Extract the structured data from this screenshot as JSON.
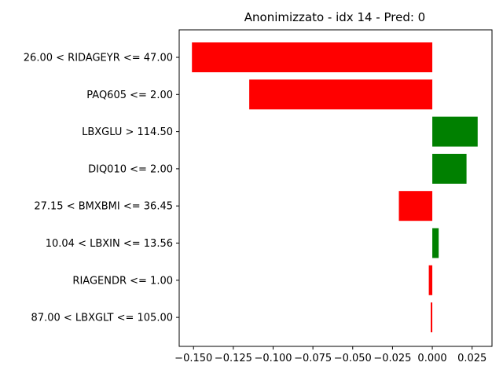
{
  "chart_data": {
    "type": "bar",
    "orientation": "horizontal",
    "title": "Anonimizzato - idx 14 - Pred: 0",
    "xlabel": "",
    "ylabel": "",
    "xlim": [
      -0.159,
      0.0375
    ],
    "xticks": [
      -0.15,
      -0.125,
      -0.1,
      -0.075,
      -0.05,
      -0.025,
      0.0,
      0.025
    ],
    "xtick_labels": [
      "−0.150",
      "−0.125",
      "−0.100",
      "−0.075",
      "−0.050",
      "−0.025",
      "0.000",
      "0.025"
    ],
    "grid": false,
    "positive_color": "#008000",
    "negative_color": "#ff0000",
    "categories": [
      "26.00 < RIDAGEYR <= 47.00",
      "PAQ605 <= 2.00",
      "LBXGLU > 114.50",
      "DIQ010 <= 2.00",
      "27.15 < BMXBMI <= 36.45",
      "10.04 < LBXIN <= 13.56",
      "RIAGENDR <= 1.00",
      "87.00 < LBXGLT <= 105.00"
    ],
    "values": [
      -0.151,
      -0.115,
      0.0285,
      0.0215,
      -0.021,
      0.004,
      -0.0022,
      -0.001
    ]
  }
}
